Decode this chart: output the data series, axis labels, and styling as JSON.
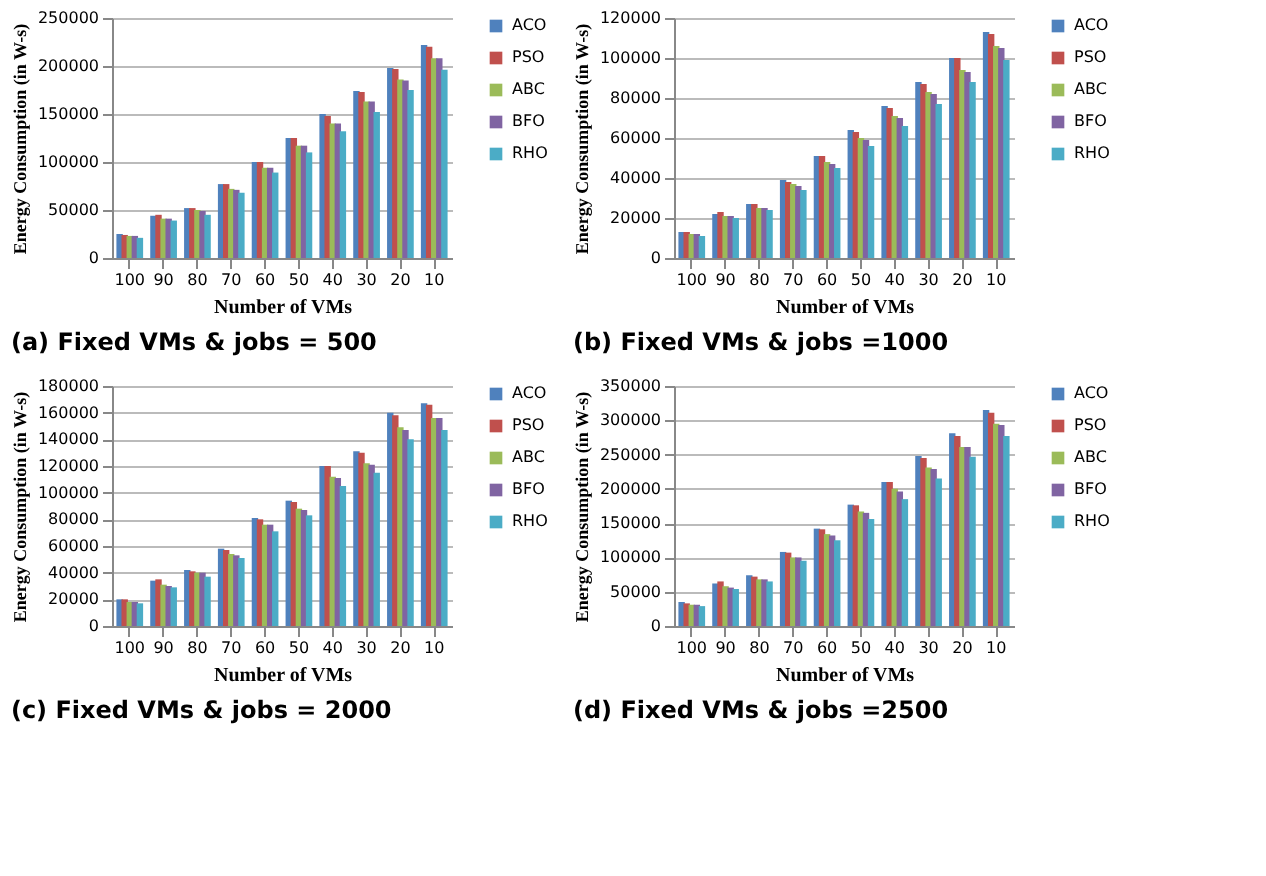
{
  "chart_data": [
    {
      "type": "bar",
      "title": "(a) Fixed VMs & jobs = 500",
      "xlabel": "Number of VMs",
      "ylabel": "Energy Consumption (in W-s)",
      "categories": [
        "100",
        "90",
        "80",
        "70",
        "60",
        "50",
        "40",
        "30",
        "20",
        "10"
      ],
      "ylim": [
        0,
        250000
      ],
      "yticks": [
        0,
        50000,
        100000,
        150000,
        200000,
        250000
      ],
      "grid": "y",
      "legend": "right",
      "series": [
        {
          "name": "ACO",
          "color": "#4f81bd",
          "values": [
            25000,
            44000,
            52000,
            77000,
            100000,
            125000,
            150000,
            174000,
            198000,
            222000
          ]
        },
        {
          "name": "PSO",
          "color": "#c0504d",
          "values": [
            24000,
            45000,
            52000,
            77000,
            100000,
            125000,
            148000,
            173000,
            197000,
            220000
          ]
        },
        {
          "name": "ABC",
          "color": "#9bbb59",
          "values": [
            23000,
            41000,
            50000,
            72000,
            94000,
            117000,
            140000,
            163000,
            186000,
            208000
          ]
        },
        {
          "name": "BFO",
          "color": "#8064a2",
          "values": [
            23000,
            41000,
            49000,
            71000,
            94000,
            117000,
            140000,
            163000,
            185000,
            208000
          ]
        },
        {
          "name": "RHO",
          "color": "#4bacc6",
          "values": [
            21000,
            39000,
            45000,
            68000,
            89000,
            110000,
            132000,
            152000,
            175000,
            196000
          ]
        }
      ]
    },
    {
      "type": "bar",
      "title": "(b) Fixed VMs & jobs =1000",
      "xlabel": "Number of VMs",
      "ylabel": "Energy Consumption (in W-s)",
      "categories": [
        "100",
        "90",
        "80",
        "70",
        "60",
        "50",
        "40",
        "30",
        "20",
        "10"
      ],
      "ylim": [
        0,
        120000
      ],
      "yticks": [
        0,
        20000,
        40000,
        60000,
        80000,
        100000,
        120000
      ],
      "grid": "y",
      "legend": "right",
      "series": [
        {
          "name": "ACO",
          "color": "#4f81bd",
          "values": [
            13000,
            22000,
            27000,
            39000,
            51000,
            64000,
            76000,
            88000,
            100000,
            113000
          ]
        },
        {
          "name": "PSO",
          "color": "#c0504d",
          "values": [
            13000,
            23000,
            27000,
            38000,
            51000,
            63000,
            75000,
            87000,
            100000,
            112000
          ]
        },
        {
          "name": "ABC",
          "color": "#9bbb59",
          "values": [
            12000,
            21000,
            25000,
            37000,
            48000,
            60000,
            71000,
            83000,
            94000,
            106000
          ]
        },
        {
          "name": "BFO",
          "color": "#8064a2",
          "values": [
            12000,
            21000,
            25000,
            36000,
            47000,
            59000,
            70000,
            82000,
            93000,
            105000
          ]
        },
        {
          "name": "RHO",
          "color": "#4bacc6",
          "values": [
            11000,
            20000,
            24000,
            34000,
            45000,
            56000,
            66000,
            77000,
            88000,
            99000
          ]
        }
      ]
    },
    {
      "type": "bar",
      "title": "(c) Fixed VMs & jobs = 2000",
      "xlabel": "Number of VMs",
      "ylabel": "Energy Consumption (in W-s)",
      "categories": [
        "100",
        "90",
        "80",
        "70",
        "60",
        "50",
        "40",
        "30",
        "20",
        "10"
      ],
      "ylim": [
        0,
        180000
      ],
      "yticks": [
        0,
        20000,
        40000,
        60000,
        80000,
        100000,
        120000,
        140000,
        160000,
        180000
      ],
      "grid": "y",
      "legend": "right",
      "series": [
        {
          "name": "ACO",
          "color": "#4f81bd",
          "values": [
            20000,
            34000,
            42000,
            58000,
            81000,
            94000,
            120000,
            131000,
            160000,
            167000
          ]
        },
        {
          "name": "PSO",
          "color": "#c0504d",
          "values": [
            20000,
            35000,
            41000,
            57000,
            80000,
            93000,
            120000,
            130000,
            158000,
            166000
          ]
        },
        {
          "name": "ABC",
          "color": "#9bbb59",
          "values": [
            18000,
            31000,
            40000,
            54000,
            76000,
            88000,
            112000,
            122000,
            149000,
            156000
          ]
        },
        {
          "name": "BFO",
          "color": "#8064a2",
          "values": [
            18000,
            30000,
            40000,
            53000,
            76000,
            87000,
            111000,
            121000,
            147000,
            156000
          ]
        },
        {
          "name": "RHO",
          "color": "#4bacc6",
          "values": [
            17000,
            29000,
            37000,
            51000,
            71000,
            83000,
            105000,
            115000,
            140000,
            147000
          ]
        }
      ]
    },
    {
      "type": "bar",
      "title": "(d) Fixed VMs & jobs =2500",
      "xlabel": "Number of VMs",
      "ylabel": "Energy Consumption (in W-s)",
      "categories": [
        "100",
        "90",
        "80",
        "70",
        "60",
        "50",
        "40",
        "30",
        "20",
        "10"
      ],
      "ylim": [
        0,
        350000
      ],
      "yticks": [
        0,
        50000,
        100000,
        150000,
        200000,
        250000,
        300000,
        350000
      ],
      "grid": "y",
      "legend": "right",
      "series": [
        {
          "name": "ACO",
          "color": "#4f81bd",
          "values": [
            35000,
            62000,
            74000,
            108000,
            142000,
            177000,
            210000,
            248000,
            281000,
            315000
          ]
        },
        {
          "name": "PSO",
          "color": "#c0504d",
          "values": [
            33000,
            65000,
            72000,
            107000,
            141000,
            176000,
            210000,
            245000,
            277000,
            311000
          ]
        },
        {
          "name": "ABC",
          "color": "#9bbb59",
          "values": [
            31000,
            58000,
            68000,
            100000,
            134000,
            167000,
            200000,
            231000,
            261000,
            295000
          ]
        },
        {
          "name": "BFO",
          "color": "#8064a2",
          "values": [
            31000,
            56000,
            68000,
            100000,
            132000,
            165000,
            196000,
            229000,
            261000,
            293000
          ]
        },
        {
          "name": "RHO",
          "color": "#4bacc6",
          "values": [
            29000,
            54000,
            65000,
            95000,
            125000,
            156000,
            185000,
            215000,
            247000,
            277000
          ]
        }
      ]
    }
  ]
}
